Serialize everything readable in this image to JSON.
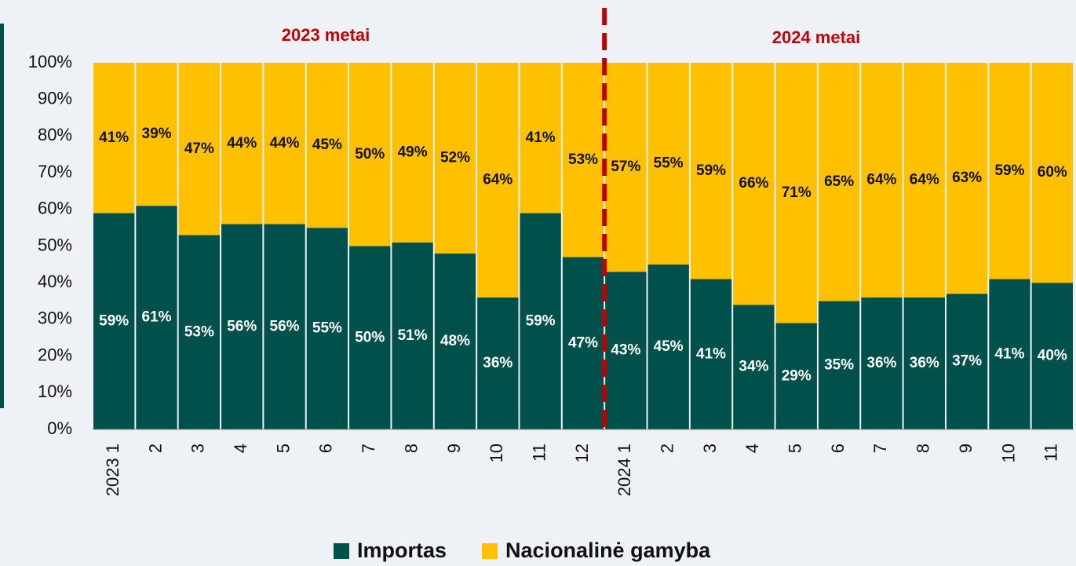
{
  "chart_data": {
    "type": "stacked-bar",
    "categories": [
      "2023 1",
      "2",
      "3",
      "4",
      "5",
      "6",
      "7",
      "8",
      "9",
      "10",
      "11",
      "12",
      "2024 1",
      "2",
      "3",
      "4",
      "5",
      "6",
      "7",
      "8",
      "9",
      "10",
      "11"
    ],
    "series": [
      {
        "name": "Importas",
        "color": "#00514b",
        "values": [
          59,
          61,
          53,
          56,
          56,
          55,
          50,
          51,
          48,
          36,
          59,
          47,
          43,
          45,
          41,
          34,
          29,
          35,
          36,
          36,
          37,
          41,
          40
        ],
        "value_labels": [
          "59%",
          "61%",
          "53%",
          "56%",
          "56%",
          "55%",
          "50%",
          "51%",
          "48%",
          "36%",
          "59%",
          "47%",
          "43%",
          "45%",
          "41%",
          "34%",
          "29%",
          "35%",
          "36%",
          "36%",
          "37%",
          "41%",
          "40%"
        ]
      },
      {
        "name": "Nacionalinė gamyba",
        "color": "#ffc000",
        "values": [
          41,
          39,
          47,
          44,
          44,
          45,
          50,
          49,
          52,
          64,
          41,
          53,
          57,
          55,
          59,
          66,
          71,
          65,
          64,
          64,
          63,
          59,
          60
        ],
        "value_labels": [
          "41%",
          "39%",
          "47%",
          "44%",
          "44%",
          "45%",
          "50%",
          "49%",
          "52%",
          "64%",
          "41%",
          "53%",
          "57%",
          "55%",
          "59%",
          "66%",
          "71%",
          "65%",
          "64%",
          "64%",
          "63%",
          "59%",
          "60%"
        ]
      }
    ],
    "ylim": [
      0,
      100
    ],
    "yticks": [
      {
        "value": 0,
        "label": "0%"
      },
      {
        "value": 10,
        "label": "10%"
      },
      {
        "value": 20,
        "label": "20%"
      },
      {
        "value": 30,
        "label": "30%"
      },
      {
        "value": 40,
        "label": "40%"
      },
      {
        "value": 50,
        "label": "50%"
      },
      {
        "value": 60,
        "label": "60%"
      },
      {
        "value": 70,
        "label": "70%"
      },
      {
        "value": 80,
        "label": "80%"
      },
      {
        "value": 90,
        "label": "90%"
      },
      {
        "value": 100,
        "label": "100%"
      }
    ],
    "annotations": [
      "2023 metai",
      "2024 metai"
    ]
  }
}
